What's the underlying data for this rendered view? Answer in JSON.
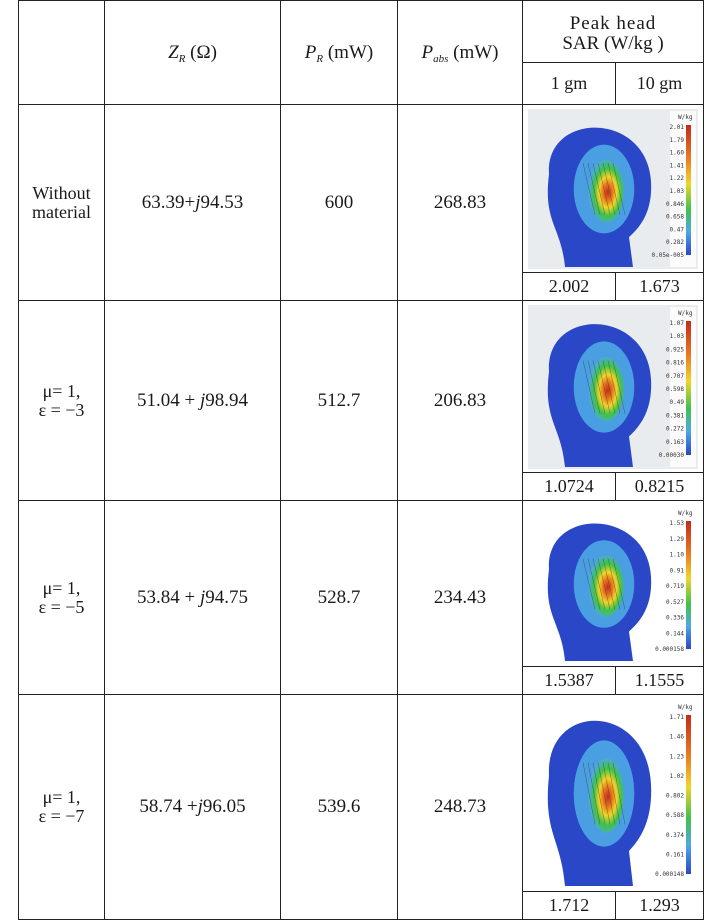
{
  "header": {
    "zr_symbol": "Z",
    "zr_sub": "R",
    "zr_unit": "(Ω)",
    "pr_symbol": "P",
    "pr_sub": "R",
    "pr_unit": "(mW)",
    "pabs_symbol": "P",
    "pabs_sub": "abs",
    "pabs_unit": "(mW)",
    "sar_line1": "Peak head",
    "sar_line2": "SAR (W/kg )",
    "sar_1gm": "1 gm",
    "sar_10gm": "10 gm"
  },
  "rows": [
    {
      "label_line1": "Without",
      "label_line2": "material",
      "zr_real": "63.39+",
      "zr_j": "j",
      "zr_imag": "94.53",
      "pr": "600",
      "pabs": "268.83",
      "sar_1gm": "2.002",
      "sar_10gm": "1.673",
      "scale_unit": "W/kg",
      "scale": [
        "2.01",
        "1.79",
        "1.60",
        "1.41",
        "1.22",
        "1.03",
        "0.846",
        "0.658",
        "0.47",
        "0.282",
        "0.05e-005"
      ],
      "bg": "#e9ecef"
    },
    {
      "label_line1": "μ= 1,",
      "label_line2": "ε = −3",
      "zr_real": "51.04 + ",
      "zr_j": "j",
      "zr_imag": "98.94",
      "pr": "512.7",
      "pabs": "206.83",
      "sar_1gm": "1.0724",
      "sar_10gm": "0.8215",
      "scale_unit": "W/kg",
      "scale": [
        "1.07",
        "1.03",
        "0.925",
        "0.816",
        "0.707",
        "0.598",
        "0.49",
        "0.381",
        "0.272",
        "0.163",
        "0.00030"
      ],
      "bg": "#e9ecef"
    },
    {
      "label_line1": "μ= 1,",
      "label_line2": "ε = −5",
      "zr_real": "53.84 + ",
      "zr_j": "j",
      "zr_imag": "94.75",
      "pr": "528.7",
      "pabs": "234.43",
      "sar_1gm": "1.5387",
      "sar_10gm": "1.1555",
      "scale_unit": "W/kg",
      "scale": [
        "1.53",
        "1.29",
        "1.10",
        "0.91",
        "0.719",
        "0.527",
        "0.336",
        "0.144",
        "0.000158"
      ],
      "bg": "#ffffff"
    },
    {
      "label_line1": "μ= 1,",
      "label_line2": "ε = −7",
      "zr_real": "58.74 +",
      "zr_j": "j",
      "zr_imag": "96.05",
      "pr": "539.6",
      "pabs": "248.73",
      "sar_1gm": "1.712",
      "sar_10gm": "1.293",
      "scale_unit": "W/kg",
      "scale": [
        "1.71",
        "1.46",
        "1.23",
        "1.02",
        "0.802",
        "0.588",
        "0.374",
        "0.161",
        "0.000148"
      ],
      "bg": "#ffffff"
    }
  ],
  "colors": {
    "head_outer": "#2a47c8",
    "head_inner": "#4ea8e6",
    "hot_green": "#3fc24a",
    "hot_yellow": "#f2d42a",
    "hot_orange": "#e67a22",
    "hot_red": "#c42a1c"
  }
}
